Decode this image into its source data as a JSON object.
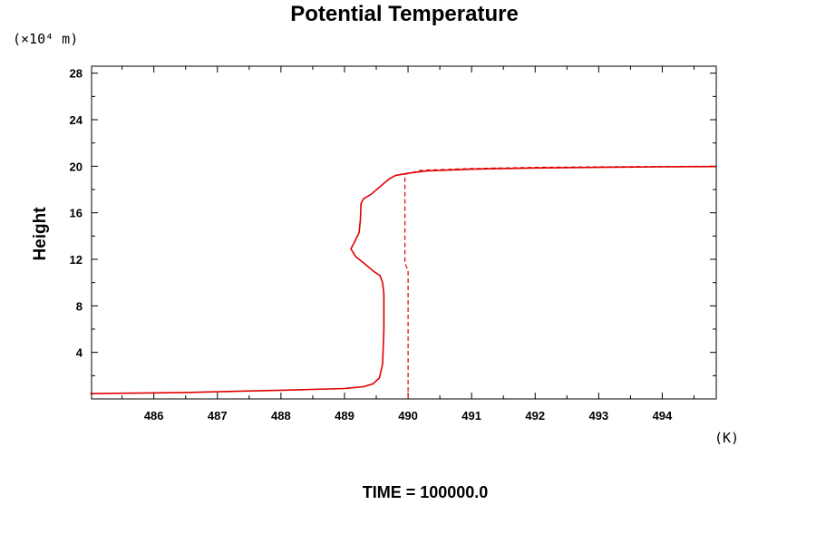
{
  "chart_data": {
    "type": "line",
    "title": "Potential Temperature",
    "ylabel": "Height",
    "y_unit": "(×10⁴ m)",
    "x_unit": "(K)",
    "footer": "TIME = 100000.0",
    "xlim": [
      485.02,
      494.85
    ],
    "ylim": [
      0,
      28.6
    ],
    "xticks": [
      486,
      487,
      488,
      489,
      490,
      491,
      492,
      493,
      494
    ],
    "xtick_labels": [
      "486",
      "487",
      "488",
      "489",
      "490",
      "491",
      "492",
      "493",
      "494"
    ],
    "yticks": [
      4,
      8,
      12,
      16,
      20,
      24,
      28
    ],
    "ytick_labels": [
      "4",
      "8",
      "12",
      "16",
      "20",
      "24",
      "28"
    ],
    "grid": false,
    "colors": {
      "series": "#e00000",
      "axes": "#000000"
    },
    "series": [
      {
        "style": "solid",
        "points": [
          [
            485.0,
            0.45
          ],
          [
            486.5,
            0.55
          ],
          [
            488.0,
            0.75
          ],
          [
            489.0,
            0.9
          ],
          [
            489.3,
            1.05
          ],
          [
            489.45,
            1.3
          ],
          [
            489.55,
            1.8
          ],
          [
            489.6,
            3.0
          ],
          [
            489.62,
            6.0
          ],
          [
            489.62,
            9.0
          ],
          [
            489.6,
            10.0
          ],
          [
            489.56,
            10.6
          ],
          [
            489.45,
            11.0
          ],
          [
            489.3,
            11.7
          ],
          [
            489.18,
            12.2
          ],
          [
            489.1,
            12.9
          ],
          [
            489.15,
            13.4
          ],
          [
            489.23,
            14.3
          ],
          [
            489.25,
            15.4
          ],
          [
            489.26,
            16.8
          ],
          [
            489.3,
            17.2
          ],
          [
            489.42,
            17.6
          ],
          [
            489.55,
            18.2
          ],
          [
            489.7,
            18.9
          ],
          [
            489.8,
            19.2
          ],
          [
            490.0,
            19.4
          ],
          [
            490.3,
            19.6
          ],
          [
            491.0,
            19.75
          ],
          [
            492.0,
            19.85
          ],
          [
            493.0,
            19.9
          ],
          [
            494.0,
            19.95
          ],
          [
            494.85,
            19.97
          ]
        ]
      },
      {
        "style": "dashed",
        "points": [
          [
            490.0,
            0.0
          ],
          [
            490.0,
            11.0
          ],
          [
            489.95,
            11.7
          ],
          [
            489.95,
            19.3
          ],
          [
            490.2,
            19.65
          ],
          [
            491.0,
            19.8
          ],
          [
            492.0,
            19.9
          ],
          [
            493.0,
            19.95
          ],
          [
            494.0,
            19.98
          ],
          [
            494.85,
            20.0
          ]
        ]
      }
    ]
  }
}
